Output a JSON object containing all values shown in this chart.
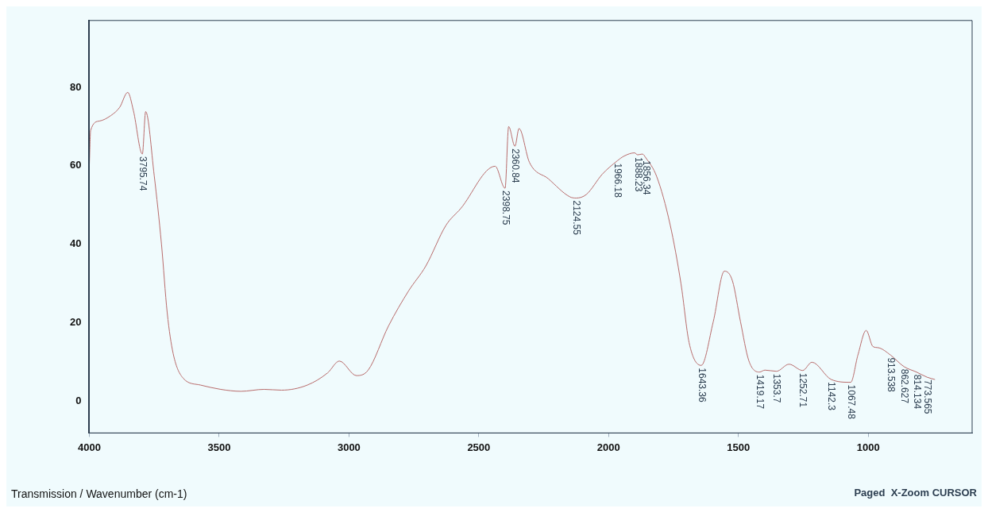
{
  "chart_data": {
    "type": "line",
    "xlabel": "Transmission / Wavenumber (cm-1)",
    "xlim": [
      4000,
      600
    ],
    "ylim": [
      -8,
      97
    ],
    "xticks": [
      4000,
      3500,
      3000,
      2500,
      2000,
      1500,
      1000
    ],
    "yticks": [
      0,
      20,
      40,
      60,
      80
    ],
    "series": [
      {
        "color": "#b86b6b",
        "x": [
          4000,
          3995,
          3961,
          3917,
          3883,
          3852,
          3830,
          3795.74,
          3783,
          3750,
          3722,
          3700,
          3677,
          3638,
          3572,
          3494,
          3416,
          3327,
          3260,
          3160,
          3082,
          3037,
          2971,
          2926,
          2848,
          2770,
          2704,
          2626,
          2570,
          2437,
          2398.75,
          2385,
          2360.84,
          2345,
          2305,
          2232,
          2149,
          2124.55,
          2086,
          2024,
          1966.18,
          1940,
          1900,
          1888.23,
          1870,
          1856.34,
          1815,
          1763,
          1721,
          1690,
          1643.36,
          1597,
          1554,
          1523,
          1492,
          1460,
          1419.17,
          1398,
          1353.7,
          1305,
          1252.71,
          1217,
          1142.3,
          1067.48,
          1040,
          1008,
          982,
          961,
          913.538,
          862.627,
          814.134,
          773.565,
          743
        ],
        "values": [
          60,
          69,
          71.4,
          72.8,
          74.9,
          78.7,
          74,
          63,
          73.8,
          57.5,
          40,
          22.6,
          12.2,
          5.9,
          4.2,
          3.1,
          2.6,
          3.1,
          2.9,
          4.2,
          7.3,
          10.3,
          6.6,
          8,
          19.2,
          28.2,
          34.5,
          44.9,
          49.1,
          59.9,
          54.3,
          70,
          65,
          69.5,
          60.9,
          56.7,
          52.1,
          51.8,
          52.7,
          57.9,
          61.3,
          62.5,
          63.3,
          62.8,
          63,
          62,
          57.3,
          45,
          29.9,
          15,
          9.2,
          20.3,
          33.2,
          30.7,
          20.3,
          10.4,
          7.5,
          8,
          7.7,
          9.5,
          7.9,
          10,
          5.6,
          4.9,
          11.8,
          18.1,
          14,
          13.7,
          11.8,
          8.9,
          7.5,
          6.2,
          5.6
        ]
      }
    ],
    "annotations": [
      {
        "text": "3795.74",
        "x": 3795.74,
        "y": 63
      },
      {
        "text": "2398.75",
        "x": 2398.75,
        "y": 54.3
      },
      {
        "text": "2360.84",
        "x": 2360.84,
        "y": 65
      },
      {
        "text": "2124.55",
        "x": 2124.55,
        "y": 51.8
      },
      {
        "text": "1966.18",
        "x": 1966.18,
        "y": 61.3
      },
      {
        "text": "1888.23",
        "x": 1888.23,
        "y": 62.8
      },
      {
        "text": "1856.34",
        "x": 1856.34,
        "y": 62
      },
      {
        "text": "1643.36",
        "x": 1643.36,
        "y": 9.2
      },
      {
        "text": "1419.17",
        "x": 1419.17,
        "y": 7.5
      },
      {
        "text": "1353.7",
        "x": 1353.7,
        "y": 7.7
      },
      {
        "text": "1252.71",
        "x": 1252.71,
        "y": 7.9
      },
      {
        "text": "1142.3",
        "x": 1142.3,
        "y": 5.6
      },
      {
        "text": "1067.48",
        "x": 1067.48,
        "y": 4.9
      },
      {
        "text": "913.538",
        "x": 913.538,
        "y": 11.8
      },
      {
        "text": "862.627",
        "x": 862.627,
        "y": 8.9
      },
      {
        "text": "814.134",
        "x": 814.134,
        "y": 7.5
      },
      {
        "text": "773.565",
        "x": 773.565,
        "y": 6.2
      },
      "Paged  X-Zoom CURSOR"
    ]
  }
}
